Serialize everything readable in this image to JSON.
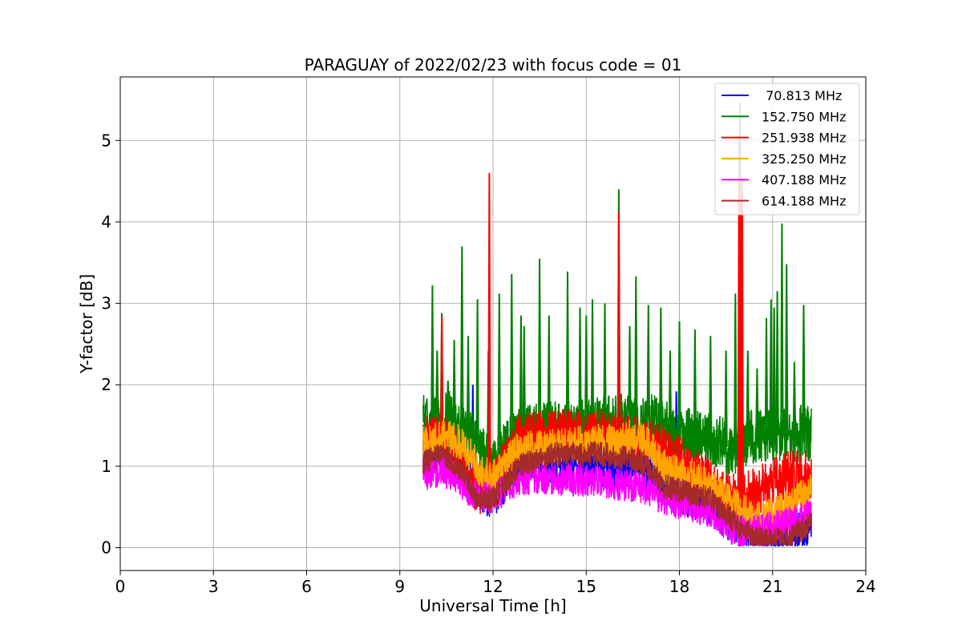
{
  "chart_data": {
    "type": "line",
    "title": "PARAGUAY of 2022/02/23 with focus code = 01",
    "xlabel": "Universal Time [h]",
    "ylabel": "Y-factor [dB]",
    "xlim": [
      0,
      24
    ],
    "ylim": [
      -0.28,
      5.78
    ],
    "xticks": [
      0,
      3,
      6,
      9,
      12,
      15,
      18,
      21,
      24
    ],
    "yticks": [
      0,
      1,
      2,
      3,
      4,
      5
    ],
    "grid": true,
    "legend_position": "top-right",
    "x_start": 9.75,
    "x_end": 22.25,
    "series": [
      {
        "name": " 70.813 MHz",
        "color": "#0000ff",
        "noise": 0.28,
        "baseline": [
          [
            9.75,
            1.2
          ],
          [
            10.4,
            1.3
          ],
          [
            11.0,
            1.05
          ],
          [
            11.5,
            0.7
          ],
          [
            12.0,
            0.65
          ],
          [
            12.8,
            1.05
          ],
          [
            14.0,
            1.05
          ],
          [
            15.5,
            1.0
          ],
          [
            16.8,
            1.05
          ],
          [
            17.5,
            0.75
          ],
          [
            19.0,
            0.55
          ],
          [
            19.8,
            0.3
          ],
          [
            20.5,
            0.15
          ],
          [
            21.5,
            0.1
          ],
          [
            22.25,
            0.3
          ]
        ],
        "spikes": [
          [
            11.35,
            2.0
          ],
          [
            17.9,
            1.92
          ]
        ]
      },
      {
        "name": "152.750 MHz",
        "color": "#008000",
        "noise": 0.35,
        "baseline": [
          [
            9.75,
            1.55
          ],
          [
            10.4,
            1.6
          ],
          [
            11.0,
            1.5
          ],
          [
            11.5,
            1.2
          ],
          [
            12.0,
            1.0
          ],
          [
            12.8,
            1.4
          ],
          [
            14.0,
            1.45
          ],
          [
            15.5,
            1.5
          ],
          [
            16.8,
            1.6
          ],
          [
            17.5,
            1.45
          ],
          [
            19.0,
            1.3
          ],
          [
            19.8,
            1.2
          ],
          [
            20.5,
            1.4
          ],
          [
            21.5,
            1.4
          ],
          [
            22.25,
            1.4
          ]
        ],
        "spikes": [
          [
            10.05,
            3.22
          ],
          [
            10.2,
            2.42
          ],
          [
            10.35,
            2.88
          ],
          [
            10.55,
            2.05
          ],
          [
            10.75,
            2.55
          ],
          [
            11.0,
            3.7
          ],
          [
            11.2,
            2.6
          ],
          [
            11.5,
            3.05
          ],
          [
            11.85,
            2.42
          ],
          [
            12.2,
            3.12
          ],
          [
            12.6,
            3.36
          ],
          [
            12.9,
            2.85
          ],
          [
            13.0,
            2.72
          ],
          [
            13.5,
            3.55
          ],
          [
            13.8,
            2.85
          ],
          [
            14.4,
            3.39
          ],
          [
            14.8,
            2.95
          ],
          [
            15.0,
            2.85
          ],
          [
            15.2,
            3.05
          ],
          [
            15.6,
            3.0
          ],
          [
            16.05,
            4.4
          ],
          [
            16.4,
            2.72
          ],
          [
            16.6,
            3.33
          ],
          [
            17.0,
            2.98
          ],
          [
            17.4,
            2.95
          ],
          [
            17.7,
            2.42
          ],
          [
            18.0,
            2.78
          ],
          [
            18.5,
            2.68
          ],
          [
            19.0,
            2.6
          ],
          [
            19.5,
            2.42
          ],
          [
            19.8,
            3.12
          ],
          [
            19.95,
            5.46
          ],
          [
            20.2,
            2.42
          ],
          [
            20.5,
            2.2
          ],
          [
            20.8,
            2.82
          ],
          [
            20.95,
            3.05
          ],
          [
            21.05,
            2.95
          ],
          [
            21.15,
            3.15
          ],
          [
            21.3,
            3.98
          ],
          [
            21.45,
            3.48
          ],
          [
            21.7,
            2.28
          ],
          [
            22.0,
            2.98
          ]
        ]
      },
      {
        "name": "251.938 MHz",
        "color": "#ff0000",
        "noise": 0.3,
        "baseline": [
          [
            9.75,
            1.3
          ],
          [
            10.4,
            1.35
          ],
          [
            11.0,
            1.05
          ],
          [
            11.5,
            0.7
          ],
          [
            12.0,
            0.75
          ],
          [
            12.8,
            1.35
          ],
          [
            14.0,
            1.4
          ],
          [
            15.5,
            1.4
          ],
          [
            16.8,
            1.3
          ],
          [
            17.5,
            1.2
          ],
          [
            19.0,
            0.8
          ],
          [
            19.8,
            0.6
          ],
          [
            20.5,
            0.7
          ],
          [
            21.5,
            0.9
          ],
          [
            22.25,
            0.9
          ]
        ],
        "spikes": [
          [
            10.35,
            2.85
          ],
          [
            11.88,
            4.6
          ],
          [
            16.05,
            4.13
          ],
          [
            19.92,
            5.02
          ],
          [
            19.97,
            4.35
          ],
          [
            20.02,
            4.55
          ]
        ]
      },
      {
        "name": "325.250 MHz",
        "color": "#ffa500",
        "noise": 0.22,
        "baseline": [
          [
            9.75,
            1.3
          ],
          [
            10.4,
            1.35
          ],
          [
            11.0,
            1.3
          ],
          [
            11.5,
            1.0
          ],
          [
            12.0,
            0.85
          ],
          [
            12.8,
            1.2
          ],
          [
            14.0,
            1.25
          ],
          [
            15.5,
            1.3
          ],
          [
            16.8,
            1.35
          ],
          [
            17.5,
            1.0
          ],
          [
            19.0,
            0.75
          ],
          [
            19.8,
            0.5
          ],
          [
            20.5,
            0.35
          ],
          [
            21.5,
            0.5
          ],
          [
            22.25,
            0.7
          ]
        ],
        "spikes": []
      },
      {
        "name": "407.188 MHz",
        "color": "#ff00ff",
        "noise": 0.2,
        "baseline": [
          [
            9.75,
            0.9
          ],
          [
            10.4,
            0.95
          ],
          [
            11.0,
            0.8
          ],
          [
            11.5,
            0.6
          ],
          [
            12.0,
            0.6
          ],
          [
            12.8,
            0.85
          ],
          [
            14.0,
            0.85
          ],
          [
            15.5,
            0.8
          ],
          [
            16.8,
            0.75
          ],
          [
            17.5,
            0.6
          ],
          [
            19.0,
            0.45
          ],
          [
            19.8,
            0.2
          ],
          [
            20.5,
            0.2
          ],
          [
            21.5,
            0.3
          ],
          [
            22.25,
            0.4
          ]
        ],
        "spikes": []
      },
      {
        "name": "614.188 MHz",
        "color": "#a52a2a",
        "noise": 0.15,
        "baseline": [
          [
            9.75,
            1.05
          ],
          [
            10.4,
            1.15
          ],
          [
            11.0,
            0.95
          ],
          [
            11.5,
            0.6
          ],
          [
            12.0,
            0.6
          ],
          [
            12.8,
            1.0
          ],
          [
            14.0,
            1.15
          ],
          [
            15.5,
            1.15
          ],
          [
            16.8,
            1.05
          ],
          [
            17.5,
            0.75
          ],
          [
            19.0,
            0.6
          ],
          [
            19.8,
            0.3
          ],
          [
            20.5,
            0.1
          ],
          [
            21.5,
            0.1
          ],
          [
            22.25,
            0.3
          ]
        ],
        "spikes": []
      }
    ]
  }
}
